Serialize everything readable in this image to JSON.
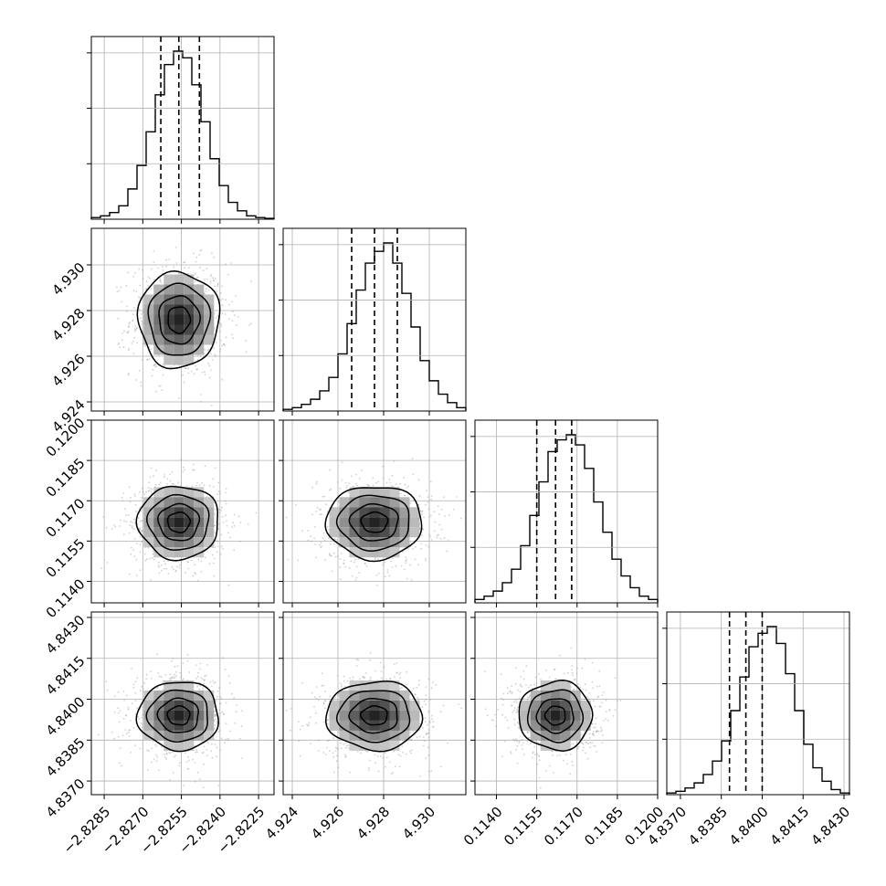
{
  "chart_data": {
    "type": "corner",
    "grid": true,
    "contour_levels": 4,
    "params": [
      {
        "range": [
          -2.829,
          -2.8219
        ],
        "ticks": [
          -2.8285,
          -2.827,
          -2.8255,
          -2.824,
          -2.8225
        ],
        "tick_labels": [
          "−2.8285",
          "−2.8270",
          "−2.8255",
          "−2.8240",
          "−2.8225"
        ],
        "quantiles": [
          -2.8263,
          -2.8256,
          -2.8248
        ],
        "hist_levels": [
          0.01,
          0.02,
          0.04,
          0.08,
          0.18,
          0.32,
          0.52,
          0.74,
          0.92,
          1.0,
          0.96,
          0.8,
          0.58,
          0.36,
          0.2,
          0.1,
          0.05,
          0.02,
          0.01,
          0.005
        ]
      },
      {
        "range": [
          4.9236,
          4.9316
        ],
        "ticks": [
          4.924,
          4.926,
          4.928,
          4.93
        ],
        "tick_labels": [
          "4.924",
          "4.926",
          "4.928",
          "4.930"
        ],
        "quantiles": [
          4.9266,
          4.9276,
          4.9286
        ],
        "hist_levels": [
          0.01,
          0.02,
          0.04,
          0.07,
          0.12,
          0.2,
          0.34,
          0.52,
          0.72,
          0.88,
          0.95,
          1.0,
          0.88,
          0.7,
          0.5,
          0.3,
          0.18,
          0.1,
          0.05,
          0.02
        ]
      },
      {
        "range": [
          0.1132,
          0.12
        ],
        "ticks": [
          0.114,
          0.1155,
          0.117,
          0.1185,
          0.12
        ],
        "tick_labels": [
          "0.1140",
          "0.1155",
          "0.1170",
          "0.1185",
          "0.1200"
        ],
        "quantiles": [
          0.1155,
          0.1162,
          0.1168
        ],
        "hist_levels": [
          0.02,
          0.04,
          0.07,
          0.12,
          0.2,
          0.34,
          0.52,
          0.72,
          0.9,
          0.97,
          1.0,
          0.94,
          0.8,
          0.6,
          0.42,
          0.26,
          0.16,
          0.09,
          0.04,
          0.02
        ]
      },
      {
        "range": [
          4.8365,
          4.8432
        ],
        "ticks": [
          4.837,
          4.8385,
          4.84,
          4.8415,
          4.843
        ],
        "tick_labels": [
          "4.8370",
          "4.8385",
          "4.8400",
          "4.8415",
          "4.8430"
        ],
        "quantiles": [
          4.8388,
          4.8394,
          4.84
        ],
        "hist_levels": [
          0.01,
          0.02,
          0.04,
          0.07,
          0.12,
          0.2,
          0.32,
          0.5,
          0.7,
          0.88,
          0.96,
          1.0,
          0.9,
          0.72,
          0.5,
          0.3,
          0.16,
          0.08,
          0.03,
          0.01
        ]
      }
    ]
  }
}
